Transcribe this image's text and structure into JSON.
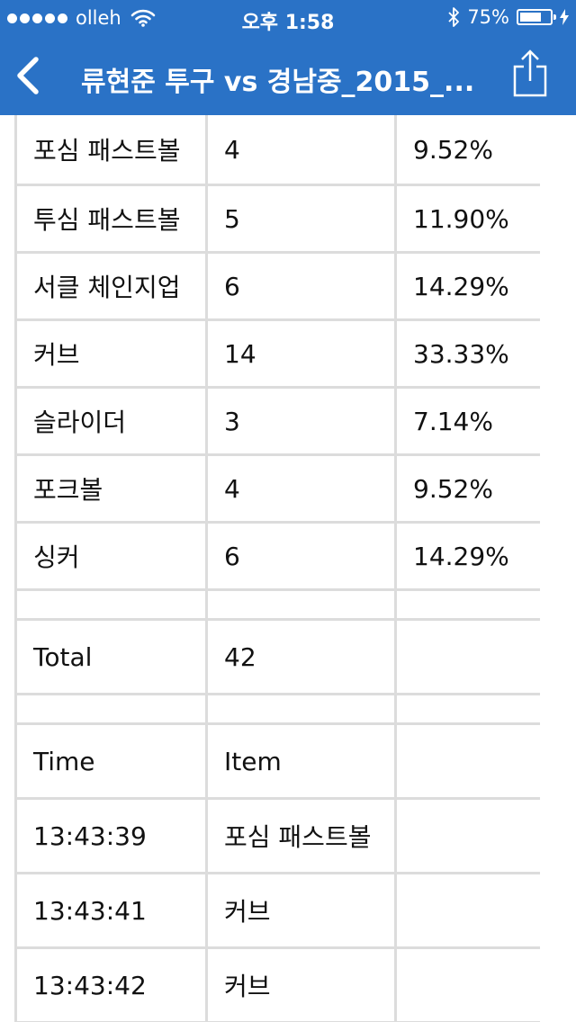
{
  "status_bar": {
    "carrier": "olleh",
    "time": "오후 1:58",
    "battery_percent": "75%",
    "battery_level": 0.75
  },
  "nav": {
    "title": "류현준 투구 vs 경남중_2015_..."
  },
  "pitch_rows": [
    {
      "pitch": "포심 패스트볼",
      "count": "4",
      "percent": "9.52%"
    },
    {
      "pitch": "투심 패스트볼",
      "count": "5",
      "percent": "11.90%"
    },
    {
      "pitch": "서클 체인지업",
      "count": "6",
      "percent": "14.29%"
    },
    {
      "pitch": "커브",
      "count": "14",
      "percent": "33.33%"
    },
    {
      "pitch": "슬라이더",
      "count": "3",
      "percent": "7.14%"
    },
    {
      "pitch": "포크볼",
      "count": "4",
      "percent": "9.52%"
    },
    {
      "pitch": "싱커",
      "count": "6",
      "percent": "14.29%"
    }
  ],
  "total": {
    "label": "Total",
    "value": "42"
  },
  "log_header": {
    "time": "Time",
    "item": "Item"
  },
  "log_rows": [
    {
      "time": "13:43:39",
      "item": "포심 패스트볼"
    },
    {
      "time": "13:43:41",
      "item": "커브"
    },
    {
      "time": "13:43:42",
      "item": "커브"
    }
  ]
}
